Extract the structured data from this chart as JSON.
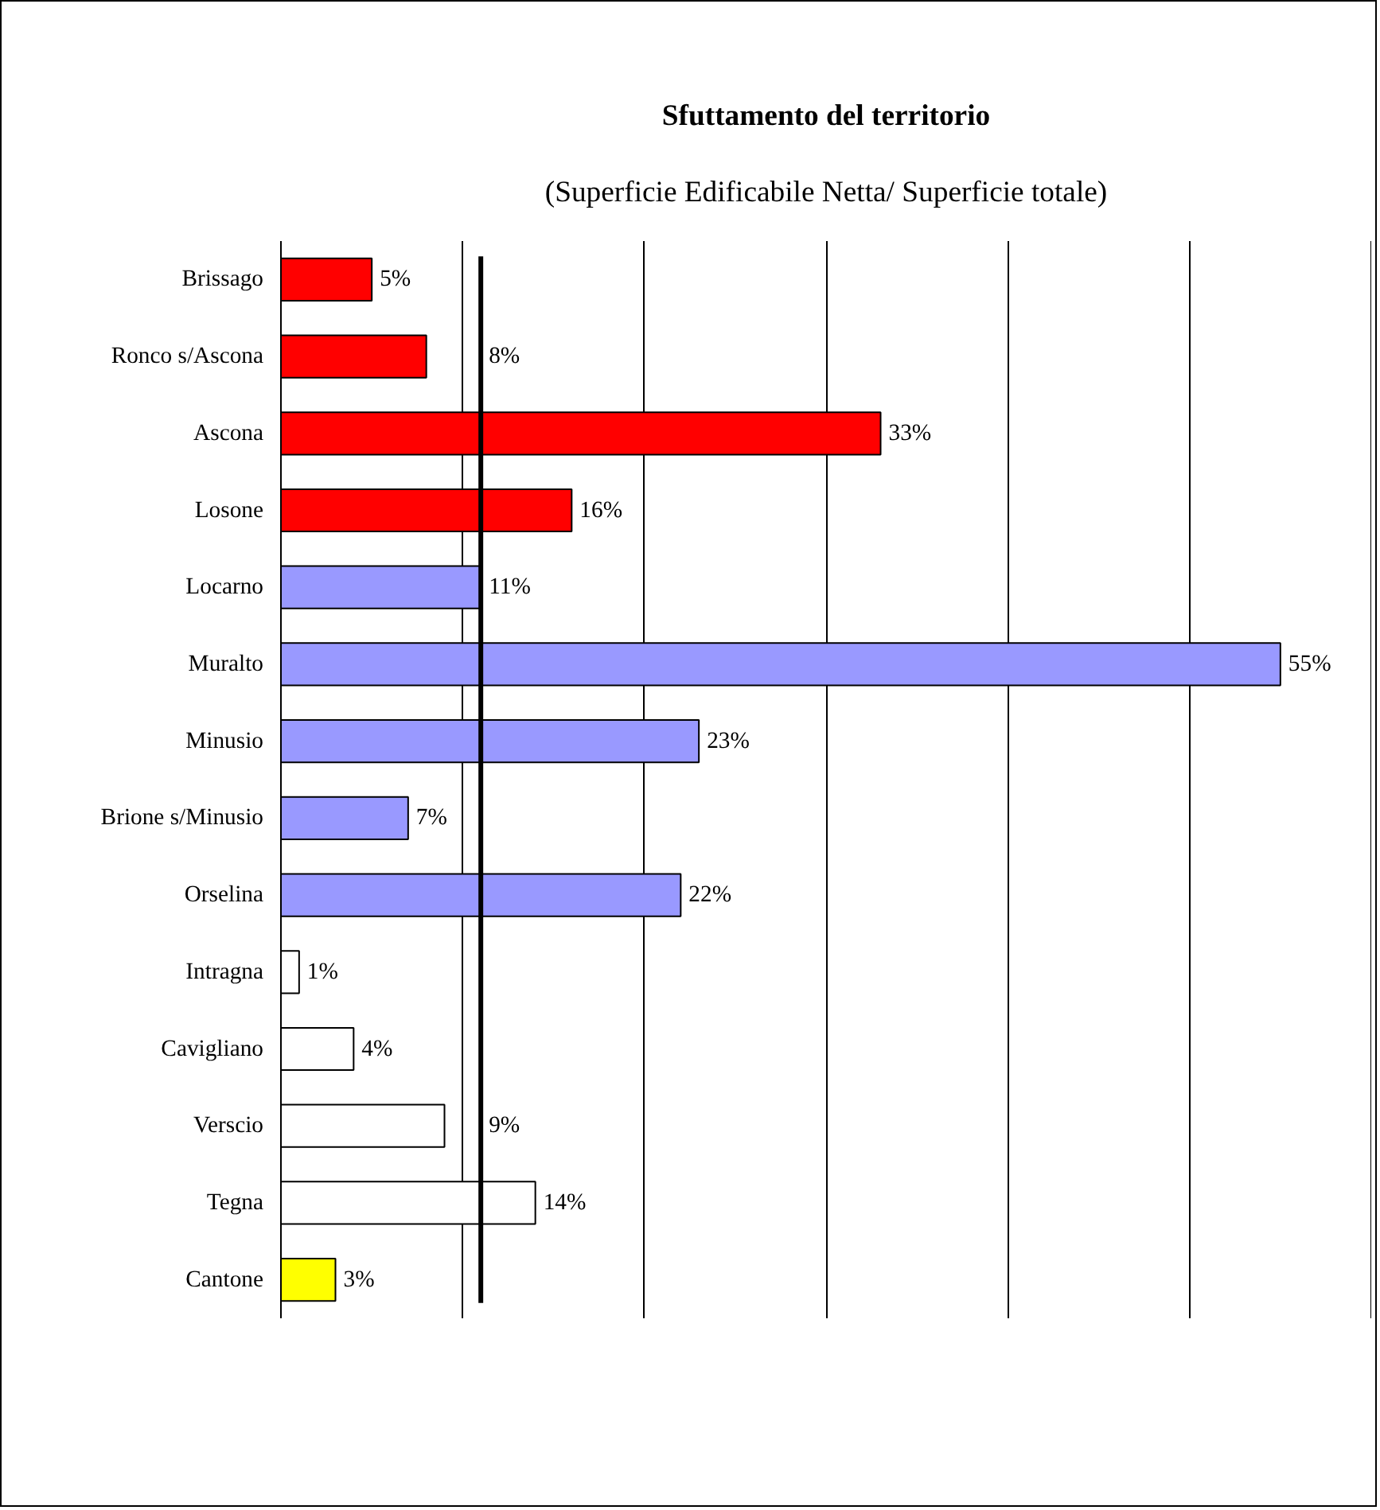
{
  "chart_data": {
    "type": "bar",
    "orientation": "horizontal",
    "title": "Sfuttamento del territorio",
    "subtitle": "(Superficie Edificabile Netta/ Superficie totale)",
    "categories": [
      "Brissago",
      "Ronco s/Ascona",
      "Ascona",
      "Losone",
      "Locarno",
      "Muralto",
      "Minusio",
      "Brione s/Minusio",
      "Orselina",
      "Intragna",
      "Cavigliano",
      "Verscio",
      "Tegna",
      "Cantone"
    ],
    "values": [
      5,
      8,
      33,
      16,
      11,
      55,
      23,
      7,
      22,
      1,
      4,
      9,
      14,
      3
    ],
    "value_labels": [
      "5%",
      "8%",
      "33%",
      "16%",
      "11%",
      "55%",
      "23%",
      "7%",
      "22%",
      "1%",
      "4%",
      "9%",
      "14%",
      "3%"
    ],
    "colors": [
      "#ff0000",
      "#ff0000",
      "#ff0000",
      "#ff0000",
      "#9999ff",
      "#9999ff",
      "#9999ff",
      "#9999ff",
      "#9999ff",
      "#ffffff",
      "#ffffff",
      "#ffffff",
      "#ffffff",
      "#ffff00"
    ],
    "xlim": [
      0,
      60
    ],
    "xticks": [
      {
        "value": 0,
        "label": null
      },
      {
        "value": 10,
        "label": null
      },
      {
        "value": 20,
        "label": null
      },
      {
        "value": 30,
        "label": null
      },
      {
        "value": 40,
        "label": null
      },
      {
        "value": 50,
        "label": null
      }
    ],
    "tick_labels": "y",
    "grid": "x",
    "ref_lines": [
      {
        "axis": "x",
        "value": 11,
        "color": "#000000"
      }
    ]
  }
}
